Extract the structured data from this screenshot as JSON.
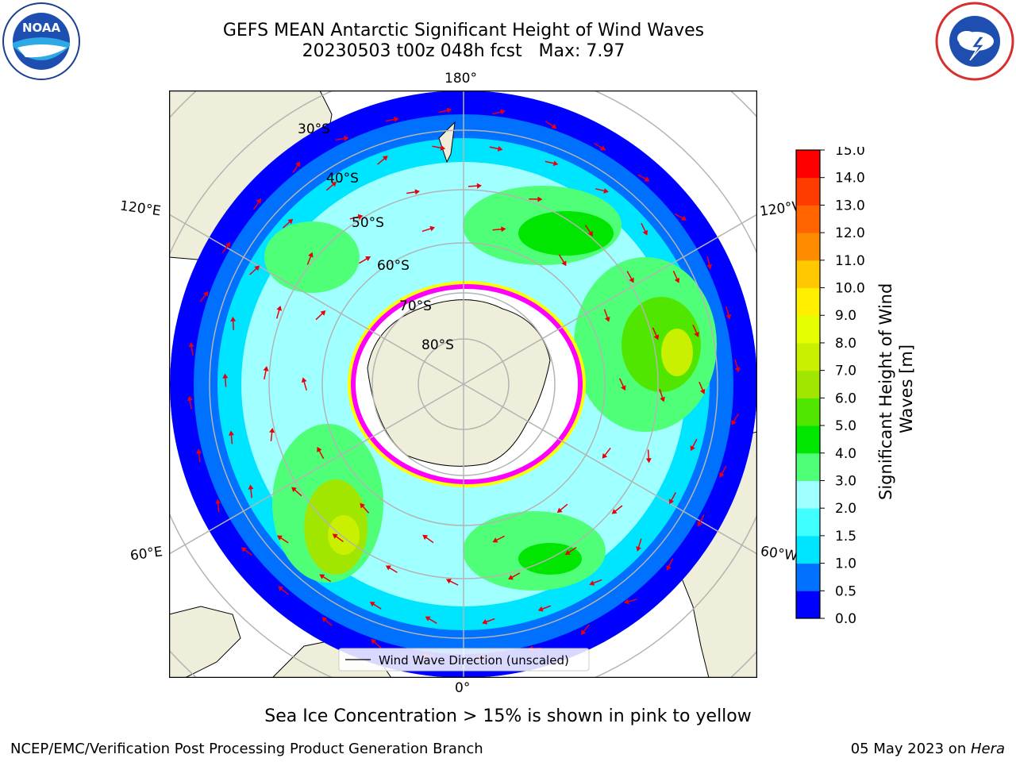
{
  "header": {
    "title_line1": "GEFS MEAN Antarctic Significant Height of Wind Waves",
    "title_line2": "20230503 t00z 048h fcst   Max: 7.97"
  },
  "logos": {
    "left_icon": "noaa-logo",
    "left_text": "NOAA",
    "right_icon": "nws-logo"
  },
  "map": {
    "projection": "south-polar-stereographic",
    "lon_labels": {
      "top": "180°",
      "upper_left": "120°E",
      "upper_right": "120°W",
      "lower_left": "60°E",
      "lower_right": "60°W",
      "bottom": "0°"
    },
    "lat_labels": [
      "30°S",
      "40°S",
      "50°S",
      "60°S",
      "70°S",
      "80°S"
    ],
    "legend_label": "Wind Wave Direction (unscaled)",
    "colors": {
      "land": "#efeedb",
      "arrow": "#e8000b",
      "sea_ice_low": "#ff00ff",
      "sea_ice_high": "#ffff00",
      "gridline": "#b4b4b4"
    }
  },
  "colorbar": {
    "label": "Significant Height of Wind Waves [m]",
    "ticks": [
      "0.0",
      "0.5",
      "1.0",
      "1.5",
      "2.0",
      "3.0",
      "4.0",
      "5.0",
      "6.0",
      "7.0",
      "8.0",
      "9.0",
      "10.0",
      "11.0",
      "12.0",
      "13.0",
      "14.0",
      "15.0"
    ],
    "colors": [
      "#0000ff",
      "#0070ff",
      "#00e5ff",
      "#40ffff",
      "#a0ffff",
      "#50ff78",
      "#00e600",
      "#50e600",
      "#a0e600",
      "#c8f000",
      "#e6ff00",
      "#fff000",
      "#ffc800",
      "#ff8c00",
      "#ff6400",
      "#ff3c00",
      "#ff0000"
    ]
  },
  "caption": "Sea Ice Concentration > 15% is shown in pink to yellow",
  "footer": {
    "left": "NCEP/EMC/Verification Post Processing Product Generation Branch",
    "right_prefix": "05 May 2023 on ",
    "right_machine": "Hera"
  }
}
